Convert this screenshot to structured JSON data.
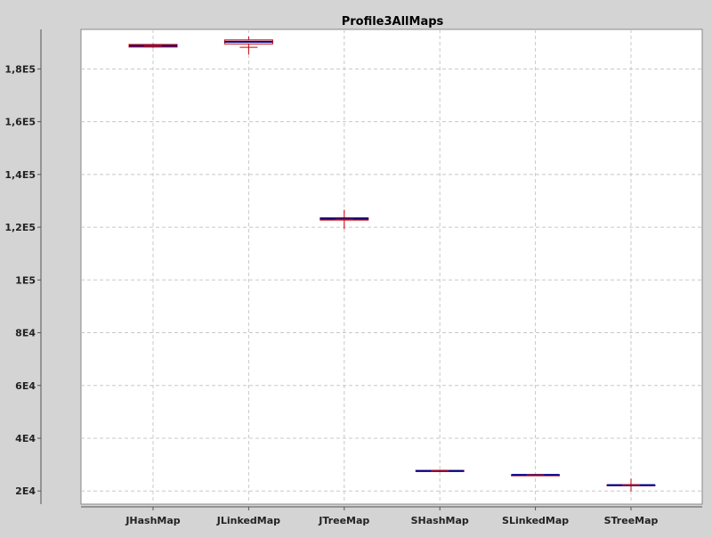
{
  "chart_data": {
    "type": "box",
    "title": "Profile3AllMaps",
    "xlabel": "",
    "ylabel": "",
    "categories": [
      "JHashMap",
      "JLinkedMap",
      "JTreeMap",
      "SHashMap",
      "SLinkedMap",
      "STreeMap"
    ],
    "ylim": [
      15000,
      195000
    ],
    "y_ticks": [
      {
        "value": 20000,
        "label": "2E4"
      },
      {
        "value": 40000,
        "label": "4E4"
      },
      {
        "value": 60000,
        "label": "6E4"
      },
      {
        "value": 80000,
        "label": "8E4"
      },
      {
        "value": 100000,
        "label": "1E5"
      },
      {
        "value": 120000,
        "label": "1,2E5"
      },
      {
        "value": 140000,
        "label": "1,4E5"
      },
      {
        "value": 160000,
        "label": "1,6E5"
      },
      {
        "value": 180000,
        "label": "1,8E5"
      }
    ],
    "grid": true,
    "boxes": [
      {
        "category": "JHashMap",
        "whisker_low": 188000,
        "q1": 188300,
        "median": 188800,
        "q3": 189300,
        "whisker_high": 189600,
        "mean": 188800
      },
      {
        "category": "JLinkedMap",
        "whisker_low": 185500,
        "q1": 189500,
        "median": 190300,
        "q3": 191000,
        "whisker_high": 192300,
        "mean": 188200
      },
      {
        "category": "JTreeMap",
        "whisker_low": 119300,
        "q1": 122700,
        "median": 123200,
        "q3": 123600,
        "whisker_high": 126600,
        "mean": 123000
      },
      {
        "category": "SHashMap",
        "whisker_low": 27200,
        "q1": 27400,
        "median": 27600,
        "q3": 27800,
        "whisker_high": 27900,
        "mean": 27600
      },
      {
        "category": "SLinkedMap",
        "whisker_low": 26000,
        "q1": 26000,
        "median": 26100,
        "q3": 26100,
        "whisker_high": 26200,
        "mean": 26100
      },
      {
        "category": "STreeMap",
        "whisker_low": 19900,
        "q1": 22000,
        "median": 22200,
        "q3": 22300,
        "whisker_high": 24700,
        "mean": 22200
      }
    ],
    "colors": {
      "background": "#d4d4d4",
      "plot_background": "#ffffff",
      "grid": "#c8c8c8",
      "box_outline": "#cc0000",
      "median": "#000088",
      "mean_marker": "#cc0000",
      "axis": "#555555"
    }
  }
}
